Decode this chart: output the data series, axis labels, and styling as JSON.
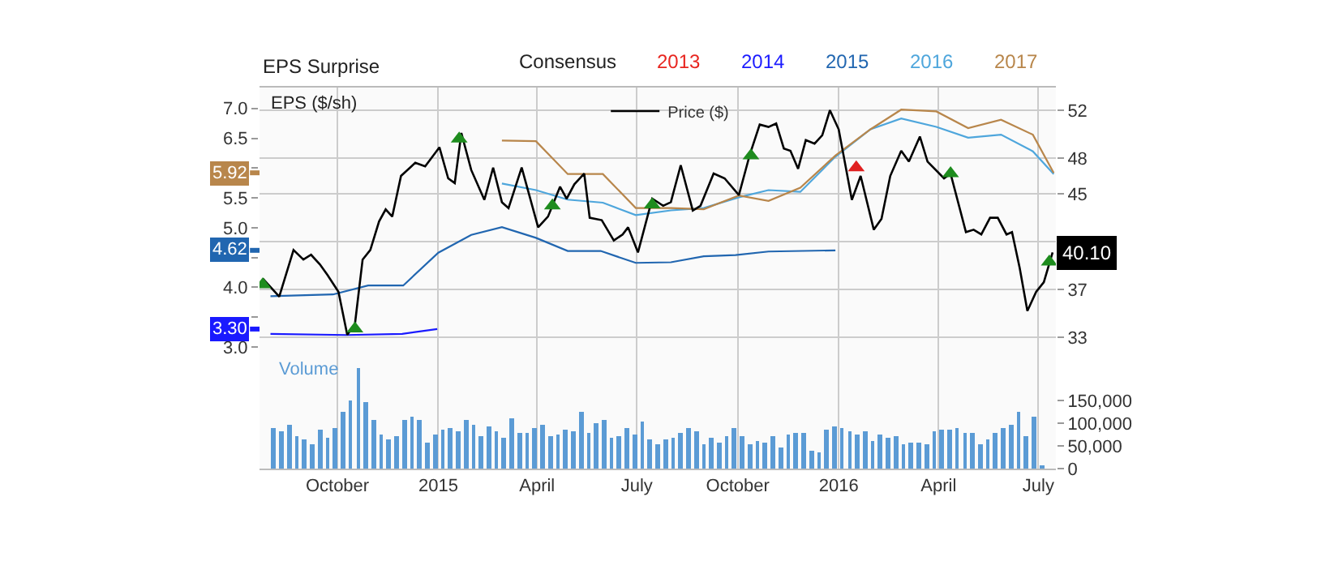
{
  "chart_data": {
    "type": "line",
    "ylabel": "EPS ($/sh)",
    "legend_title": "Consensus",
    "legend": "top right",
    "grid": true,
    "annotations": [
      "EPS Surprise"
    ],
    "ref_lines": [
      {
        "axis": "y",
        "value": 5.92,
        "label": "5.92",
        "color": "#b8864b"
      },
      {
        "axis": "y",
        "value": 4.62,
        "label": "4.62",
        "color": "#2166b0"
      },
      {
        "axis": "y",
        "value": 3.3,
        "label": "3.30",
        "color": "#1a1aff"
      }
    ],
    "xlim": [
      "2014-07-22",
      "2016-07-17"
    ],
    "xticks": [
      {
        "value": "2014-10-01",
        "label": "October"
      },
      {
        "value": "2015-01-01",
        "label": "2015"
      },
      {
        "value": "2015-04-01",
        "label": "April"
      },
      {
        "value": "2015-07-01",
        "label": "July"
      },
      {
        "value": "2015-10-01",
        "label": "October"
      },
      {
        "value": "2016-01-01",
        "label": "2016"
      },
      {
        "value": "2016-04-01",
        "label": "April"
      },
      {
        "value": "2016-07-01",
        "label": "July"
      }
    ],
    "ylim": [
      0.96,
      7.35
    ],
    "yticks": [
      {
        "value": 3.0,
        "label": "3.0"
      },
      {
        "value": 3.5,
        "label": null
      },
      {
        "value": 4.0,
        "label": "4.0"
      },
      {
        "value": 4.5,
        "label": null
      },
      {
        "value": 5.0,
        "label": "5.0"
      },
      {
        "value": 5.5,
        "label": "5.5"
      },
      {
        "value": 6.0,
        "label": null
      },
      {
        "value": 6.5,
        "label": "6.5"
      },
      {
        "value": 7.0,
        "label": "7.0"
      }
    ],
    "y2lim": [
      22.0,
      53.9
    ],
    "y2ticks": [
      33,
      37,
      {
        "value": 41,
        "label": null
      },
      45,
      48,
      52
    ],
    "y3lim": [
      0,
      840000
    ],
    "y3ticks": [
      0,
      {
        "value": 50000,
        "label": "50,000"
      },
      {
        "value": 100000,
        "label": "100,000"
      },
      {
        "value": 150000,
        "label": "150,000"
      }
    ],
    "series": [
      {
        "name": "2013",
        "color": "#e8251f",
        "axis": "y"
      },
      {
        "name": "2014",
        "color": "#1a1aff",
        "axis": "y",
        "x": [
          "2014-08-01",
          "2014-10-09",
          "2014-11-29",
          "2014-12-31"
        ],
        "values": [
          3.22,
          3.2,
          3.22,
          3.3
        ]
      },
      {
        "name": "2015",
        "color": "#2166b0",
        "axis": "y",
        "x": [
          "2014-08-01",
          "2014-09-27",
          "2014-10-29",
          "2014-11-30",
          "2015-01-01",
          "2015-01-31",
          "2015-02-28",
          "2015-03-31",
          "2015-04-29",
          "2015-05-29",
          "2015-06-30",
          "2015-08-01",
          "2015-08-31",
          "2015-09-29",
          "2015-10-29",
          "2015-12-29"
        ],
        "values": [
          3.85,
          3.88,
          4.03,
          4.03,
          4.58,
          4.88,
          5.01,
          4.83,
          4.61,
          4.61,
          4.41,
          4.42,
          4.52,
          4.54,
          4.6,
          4.62
        ]
      },
      {
        "name": "2016",
        "color": "#4ea6dc",
        "axis": "y",
        "x": [
          "2015-02-28",
          "2015-03-31",
          "2015-04-29",
          "2015-05-31",
          "2015-06-30",
          "2015-08-01",
          "2015-08-31",
          "2015-10-02",
          "2015-10-29",
          "2015-11-27",
          "2015-12-29",
          "2016-01-30",
          "2016-02-27",
          "2016-03-30",
          "2016-04-28",
          "2016-05-28",
          "2016-06-26",
          "2016-07-15"
        ],
        "values": [
          5.74,
          5.63,
          5.47,
          5.42,
          5.21,
          5.29,
          5.33,
          5.51,
          5.63,
          5.6,
          6.19,
          6.65,
          6.83,
          6.69,
          6.51,
          6.56,
          6.28,
          5.9
        ]
      },
      {
        "name": "2017",
        "color": "#b8864b",
        "axis": "y",
        "x": [
          "2015-02-28",
          "2015-03-31",
          "2015-04-29",
          "2015-05-31",
          "2015-06-30",
          "2015-08-01",
          "2015-08-31",
          "2015-10-02",
          "2015-10-29",
          "2015-11-27",
          "2015-12-29",
          "2016-01-30",
          "2016-02-27",
          "2016-03-30",
          "2016-04-28",
          "2016-05-28",
          "2016-06-26",
          "2016-07-15"
        ],
        "values": [
          6.46,
          6.45,
          5.9,
          5.9,
          5.33,
          5.33,
          5.31,
          5.54,
          5.45,
          5.67,
          6.21,
          6.65,
          6.98,
          6.95,
          6.67,
          6.81,
          6.56,
          5.92
        ]
      },
      {
        "name": "Price ($)",
        "color": "#000000",
        "axis": "y2",
        "type": "line",
        "x": [
          "2014-07-25",
          "2014-08-09",
          "2014-08-22",
          "2014-08-31",
          "2014-09-07",
          "2014-09-15",
          "2014-09-22",
          "2014-10-02",
          "2014-10-10",
          "2014-10-17",
          "2014-10-24",
          "2014-10-31",
          "2014-11-08",
          "2014-11-14",
          "2014-11-20",
          "2014-11-28",
          "2014-12-11",
          "2014-12-20",
          "2015-01-02",
          "2015-01-10",
          "2015-01-16",
          "2015-01-22",
          "2015-01-31",
          "2015-02-12",
          "2015-02-20",
          "2015-02-28",
          "2015-03-06",
          "2015-03-18",
          "2015-04-02",
          "2015-04-11",
          "2015-04-15",
          "2015-04-22",
          "2015-04-28",
          "2015-05-05",
          "2015-05-14",
          "2015-05-19",
          "2015-05-30",
          "2015-06-10",
          "2015-06-18",
          "2015-06-23",
          "2015-07-02",
          "2015-07-15",
          "2015-07-25",
          "2015-08-01",
          "2015-08-10",
          "2015-08-21",
          "2015-08-28",
          "2015-09-09",
          "2015-09-19",
          "2015-10-02",
          "2015-10-12",
          "2015-10-21",
          "2015-10-29",
          "2015-11-05",
          "2015-11-12",
          "2015-11-18",
          "2015-11-25",
          "2015-12-02",
          "2015-12-10",
          "2015-12-17",
          "2015-12-24",
          "2016-01-01",
          "2016-01-13",
          "2016-01-21",
          "2016-02-02",
          "2016-02-09",
          "2016-02-17",
          "2016-02-27",
          "2016-03-05",
          "2016-03-15",
          "2016-03-22",
          "2016-04-06",
          "2016-04-12",
          "2016-04-26",
          "2016-05-03",
          "2016-05-10",
          "2016-05-18",
          "2016-05-25",
          "2016-06-02",
          "2016-06-07",
          "2016-06-14",
          "2016-06-21",
          "2016-06-29",
          "2016-07-06",
          "2016-07-14"
        ],
        "values": [
          37.9,
          36.4,
          40.3,
          39.5,
          39.9,
          39.1,
          38.2,
          36.8,
          33.2,
          34.1,
          39.5,
          40.3,
          42.7,
          43.7,
          43.1,
          46.5,
          47.6,
          47.3,
          48.9,
          46.3,
          45.9,
          50.1,
          47.0,
          44.5,
          47.2,
          44.3,
          43.8,
          47.2,
          42.2,
          43.1,
          44.0,
          45.6,
          44.6,
          45.8,
          46.7,
          43.0,
          42.8,
          41.1,
          41.6,
          42.2,
          40.1,
          44.6,
          44.0,
          44.3,
          47.4,
          43.6,
          44.0,
          46.7,
          46.3,
          44.9,
          48.3,
          50.8,
          50.6,
          50.9,
          48.8,
          48.6,
          47.1,
          49.5,
          49.2,
          49.9,
          52.0,
          50.4,
          44.5,
          46.5,
          42.0,
          42.9,
          46.5,
          48.6,
          47.7,
          49.8,
          47.7,
          46.3,
          46.7,
          41.8,
          42.0,
          41.6,
          43.0,
          43.0,
          41.6,
          41.8,
          38.8,
          35.2,
          36.8,
          37.6,
          40.1
        ],
        "value_labels": [
          null,
          null,
          null,
          null,
          null,
          null,
          null,
          null,
          null,
          null,
          null,
          null,
          null,
          null,
          null,
          null,
          null,
          null,
          null,
          null,
          null,
          null,
          null,
          null,
          null,
          null,
          null,
          null,
          null,
          null,
          null,
          null,
          null,
          null,
          null,
          null,
          null,
          null,
          null,
          null,
          null,
          null,
          null,
          null,
          null,
          null,
          null,
          null,
          null,
          null,
          null,
          null,
          null,
          null,
          null,
          null,
          null,
          null,
          null,
          null,
          null,
          null,
          null,
          null,
          null,
          null,
          null,
          null,
          null,
          null,
          null,
          null,
          null,
          null,
          null,
          null,
          null,
          null,
          null,
          null,
          null,
          null,
          null,
          null,
          "40.10"
        ]
      },
      {
        "color": "#1e8c1e",
        "axis": "y2",
        "type": "scatter",
        "marker": "triangle",
        "x": [
          "2014-07-25",
          "2014-10-17",
          "2015-01-20",
          "2015-04-15",
          "2015-07-15",
          "2015-10-13",
          "2016-04-12",
          "2016-07-11"
        ],
        "values": [
          37.4,
          33.7,
          49.6,
          44.0,
          44.1,
          48.2,
          46.7,
          39.3
        ]
      },
      {
        "color": "#e02020",
        "axis": "y2",
        "type": "scatter",
        "marker": "triangle",
        "x": [
          "2016-01-17"
        ],
        "values": [
          47.2
        ]
      },
      {
        "name": "Volume",
        "color": "#5b9bd5",
        "axis": "y3",
        "type": "bar",
        "x": [
          "2014-08-04",
          "2014-08-11",
          "2014-08-18",
          "2014-08-25",
          "2014-09-01",
          "2014-09-08",
          "2014-09-15",
          "2014-09-22",
          "2014-09-29",
          "2014-10-06",
          "2014-10-13",
          "2014-10-20",
          "2014-10-27",
          "2014-11-03",
          "2014-11-10",
          "2014-11-17",
          "2014-11-24",
          "2014-12-01",
          "2014-12-08",
          "2014-12-15",
          "2014-12-22",
          "2014-12-29",
          "2015-01-05",
          "2015-01-12",
          "2015-01-19",
          "2015-01-26",
          "2015-02-02",
          "2015-02-09",
          "2015-02-16",
          "2015-02-23",
          "2015-03-02",
          "2015-03-09",
          "2015-03-16",
          "2015-03-23",
          "2015-03-30",
          "2015-04-06",
          "2015-04-13",
          "2015-04-20",
          "2015-04-27",
          "2015-05-04",
          "2015-05-11",
          "2015-05-18",
          "2015-05-25",
          "2015-06-01",
          "2015-06-08",
          "2015-06-15",
          "2015-06-22",
          "2015-06-29",
          "2015-07-06",
          "2015-07-13",
          "2015-07-20",
          "2015-07-27",
          "2015-08-03",
          "2015-08-10",
          "2015-08-17",
          "2015-08-24",
          "2015-08-31",
          "2015-09-07",
          "2015-09-14",
          "2015-09-21",
          "2015-09-28",
          "2015-10-05",
          "2015-10-12",
          "2015-10-19",
          "2015-10-26",
          "2015-11-02",
          "2015-11-09",
          "2015-11-16",
          "2015-11-23",
          "2015-11-30",
          "2015-12-07",
          "2015-12-14",
          "2015-12-21",
          "2015-12-28",
          "2016-01-04",
          "2016-01-11",
          "2016-01-18",
          "2016-01-25",
          "2016-02-01",
          "2016-02-08",
          "2016-02-15",
          "2016-02-22",
          "2016-02-29",
          "2016-03-07",
          "2016-03-14",
          "2016-03-21",
          "2016-03-28",
          "2016-04-04",
          "2016-04-11",
          "2016-04-18",
          "2016-04-25",
          "2016-05-02",
          "2016-05-09",
          "2016-05-16",
          "2016-05-23",
          "2016-05-30",
          "2016-06-06",
          "2016-06-13",
          "2016-06-20",
          "2016-06-27",
          "2016-07-04"
        ],
        "values": [
          88000,
          82000,
          96000,
          70000,
          64000,
          52000,
          85000,
          67000,
          88000,
          124000,
          150000,
          222000,
          145000,
          106000,
          76000,
          64000,
          70000,
          106000,
          115000,
          108000,
          58000,
          76000,
          85000,
          88000,
          82000,
          106000,
          97000,
          73000,
          94000,
          82000,
          67000,
          112000,
          79000,
          78000,
          88000,
          97000,
          72000,
          76000,
          86000,
          82000,
          124000,
          79000,
          100000,
          109000,
          67000,
          70000,
          90000,
          76000,
          102000,
          66000,
          55000,
          65000,
          67000,
          78000,
          91000,
          82000,
          52000,
          67000,
          58000,
          72000,
          91000,
          72000,
          52000,
          60000,
          58000,
          72000,
          46000,
          76000,
          78000,
          78000,
          41000,
          34000,
          86000,
          94000,
          88000,
          82000,
          76000,
          82000,
          60000,
          76000,
          67000,
          70000,
          55000,
          58000,
          58000,
          55000,
          82000,
          85000,
          85000,
          90000,
          78000,
          79000,
          55000,
          66000,
          79000,
          90000,
          97000,
          124000,
          73000,
          115000,
          7000
        ]
      }
    ]
  }
}
